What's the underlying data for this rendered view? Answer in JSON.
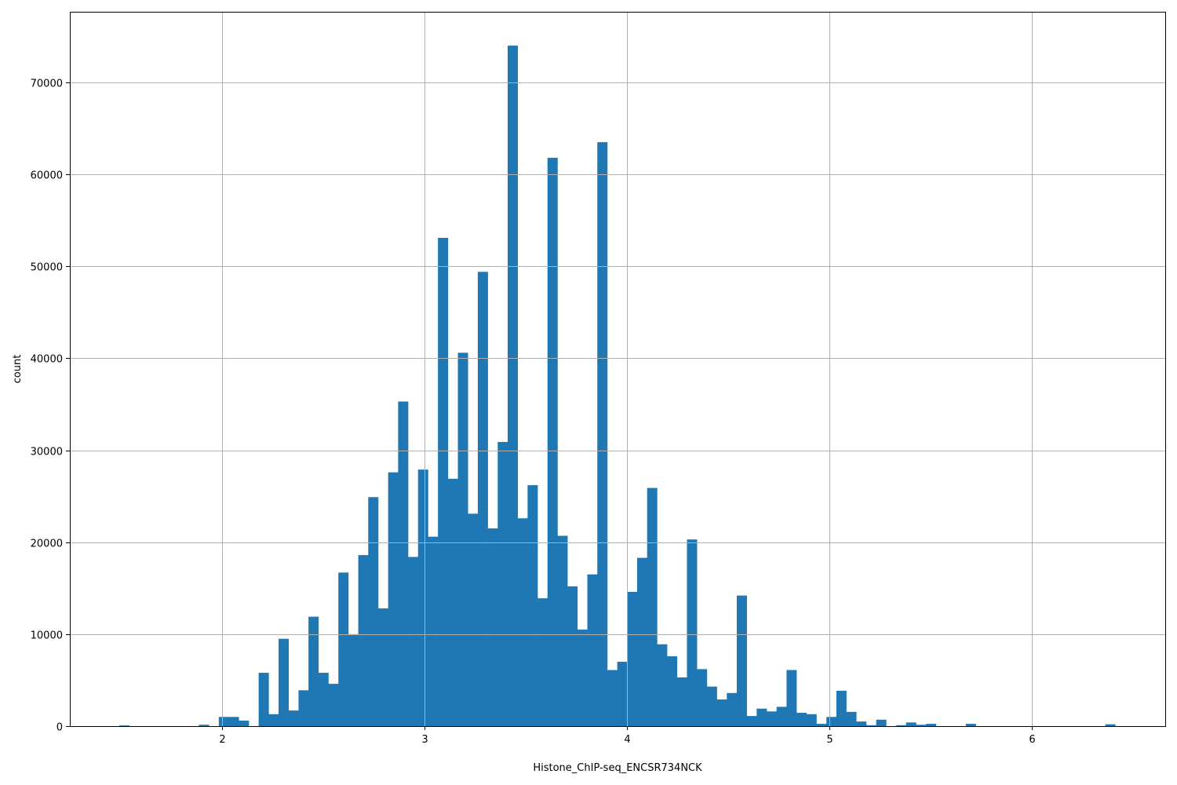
{
  "chart_data": {
    "type": "bar",
    "subtype": "histogram",
    "title": "",
    "xlabel": "Histone_ChIP-seq_ENCSR734NCK",
    "ylabel": "count",
    "xlim": [
      1.248,
      6.659
    ],
    "ylim": [
      0,
      77680
    ],
    "grid": true,
    "bar_color": "#1f77b4",
    "grid_color": "#b0b0b0",
    "x_ticks": [
      2,
      3,
      4,
      5,
      6
    ],
    "x_tick_labels": [
      "2",
      "3",
      "4",
      "5",
      "6"
    ],
    "y_ticks": [
      0,
      10000,
      20000,
      30000,
      40000,
      50000,
      60000,
      70000
    ],
    "y_tick_labels": [
      "0",
      "10000",
      "20000",
      "30000",
      "40000",
      "50000",
      "60000",
      "70000"
    ],
    "bin_start": 1.492,
    "bin_width": 0.0492,
    "values": [
      80,
      0,
      0,
      0,
      0,
      0,
      0,
      0,
      150,
      0,
      1000,
      1000,
      600,
      0,
      5800,
      1300,
      9500,
      1700,
      3900,
      11900,
      5800,
      4600,
      16700,
      10000,
      18600,
      24900,
      12800,
      27600,
      35300,
      18400,
      27900,
      20600,
      53100,
      26900,
      40600,
      23100,
      49400,
      21500,
      30900,
      74000,
      22600,
      26200,
      13900,
      61800,
      20700,
      15200,
      10500,
      16500,
      63500,
      6100,
      7000,
      14600,
      18300,
      25900,
      8900,
      7600,
      5300,
      20300,
      6200,
      4300,
      2900,
      3600,
      14200,
      1100,
      1900,
      1600,
      2100,
      6100,
      1450,
      1300,
      250,
      1000,
      3850,
      1550,
      500,
      100,
      700,
      0,
      100,
      400,
      150,
      250,
      0,
      0,
      0,
      250,
      0,
      0,
      0,
      0,
      0,
      0,
      0,
      0,
      0,
      0,
      0,
      0,
      0,
      200
    ]
  }
}
